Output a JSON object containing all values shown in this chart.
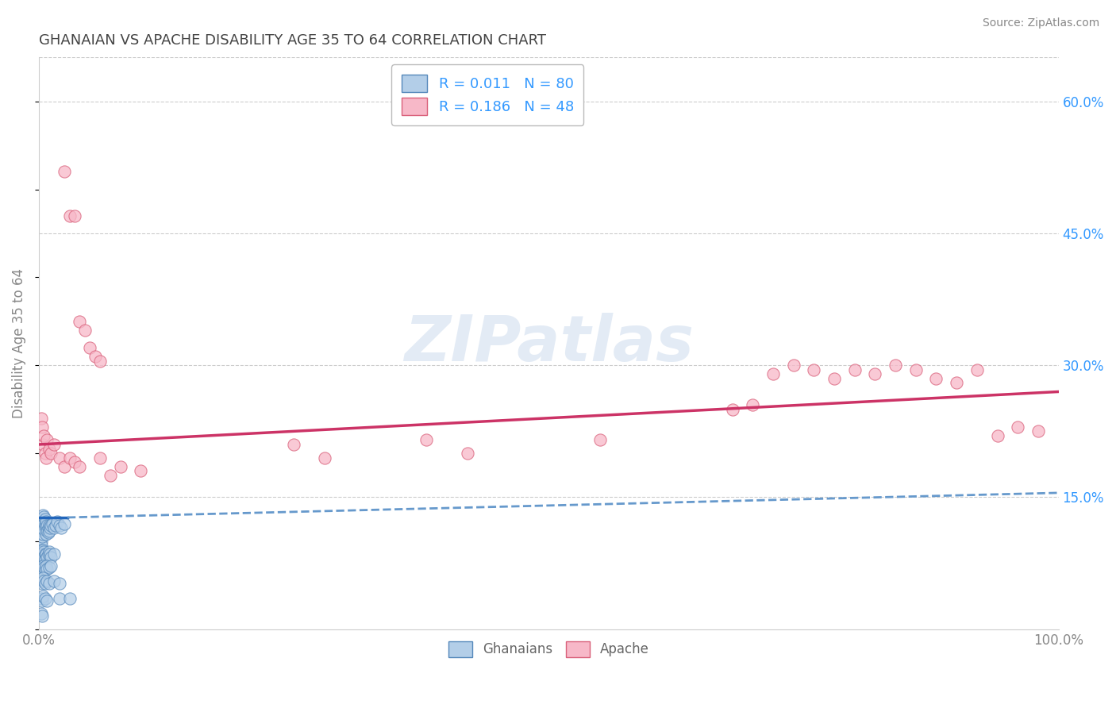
{
  "title": "GHANAIAN VS APACHE DISABILITY AGE 35 TO 64 CORRELATION CHART",
  "source": "Source: ZipAtlas.com",
  "ylabel": "Disability Age 35 to 64",
  "xlim": [
    0,
    1.0
  ],
  "ylim": [
    0,
    0.65
  ],
  "ytick_positions": [
    0.15,
    0.3,
    0.45,
    0.6
  ],
  "ytick_labels": [
    "15.0%",
    "30.0%",
    "45.0%",
    "60.0%"
  ],
  "ghanaian_color": "#b3cee8",
  "apache_color": "#f7b8c8",
  "ghanaian_edge": "#5588bb",
  "apache_edge": "#d9607a",
  "trend_ghanaian_solid_color": "#2266bb",
  "trend_ghanaian_dash_color": "#6699cc",
  "trend_apache_color": "#cc3366",
  "background_color": "#ffffff",
  "grid_color": "#cccccc",
  "title_color": "#444444",
  "tick_color_right": "#3399ff",
  "ghanaian_x": [
    0.002,
    0.002,
    0.002,
    0.002,
    0.002,
    0.003,
    0.003,
    0.003,
    0.003,
    0.004,
    0.004,
    0.004,
    0.004,
    0.005,
    0.005,
    0.005,
    0.006,
    0.006,
    0.007,
    0.007,
    0.007,
    0.008,
    0.008,
    0.009,
    0.009,
    0.01,
    0.01,
    0.011,
    0.012,
    0.013,
    0.015,
    0.016,
    0.018,
    0.02,
    0.022,
    0.025,
    0.002,
    0.002,
    0.002,
    0.003,
    0.003,
    0.004,
    0.004,
    0.005,
    0.005,
    0.006,
    0.006,
    0.007,
    0.008,
    0.009,
    0.01,
    0.011,
    0.012,
    0.015,
    0.002,
    0.003,
    0.004,
    0.005,
    0.006,
    0.007,
    0.008,
    0.01,
    0.012,
    0.002,
    0.003,
    0.004,
    0.005,
    0.006,
    0.008,
    0.01,
    0.015,
    0.02,
    0.002,
    0.003,
    0.004,
    0.006,
    0.008,
    0.02,
    0.03,
    0.002,
    0.003
  ],
  "ghanaian_y": [
    0.12,
    0.115,
    0.108,
    0.1,
    0.095,
    0.125,
    0.118,
    0.112,
    0.105,
    0.13,
    0.122,
    0.115,
    0.108,
    0.128,
    0.12,
    0.113,
    0.125,
    0.118,
    0.122,
    0.115,
    0.108,
    0.118,
    0.112,
    0.115,
    0.11,
    0.118,
    0.112,
    0.115,
    0.118,
    0.12,
    0.115,
    0.118,
    0.122,
    0.118,
    0.115,
    0.12,
    0.09,
    0.085,
    0.08,
    0.088,
    0.082,
    0.09,
    0.085,
    0.088,
    0.082,
    0.085,
    0.08,
    0.085,
    0.082,
    0.085,
    0.088,
    0.085,
    0.082,
    0.085,
    0.07,
    0.068,
    0.072,
    0.07,
    0.068,
    0.072,
    0.068,
    0.07,
    0.072,
    0.055,
    0.052,
    0.058,
    0.055,
    0.052,
    0.055,
    0.052,
    0.055,
    0.052,
    0.035,
    0.032,
    0.038,
    0.035,
    0.032,
    0.035,
    0.035,
    0.018,
    0.015
  ],
  "apache_x": [
    0.002,
    0.003,
    0.004,
    0.005,
    0.006,
    0.007,
    0.008,
    0.01,
    0.012,
    0.015,
    0.02,
    0.025,
    0.03,
    0.035,
    0.04,
    0.06,
    0.08,
    0.1,
    0.25,
    0.28,
    0.38,
    0.42,
    0.55,
    0.68,
    0.7,
    0.72,
    0.74,
    0.76,
    0.78,
    0.8,
    0.82,
    0.84,
    0.86,
    0.88,
    0.9,
    0.92,
    0.94,
    0.96,
    0.98,
    0.025,
    0.03,
    0.035,
    0.04,
    0.045,
    0.05,
    0.055,
    0.06,
    0.07
  ],
  "apache_y": [
    0.24,
    0.23,
    0.21,
    0.22,
    0.2,
    0.195,
    0.215,
    0.205,
    0.2,
    0.21,
    0.195,
    0.185,
    0.195,
    0.19,
    0.185,
    0.195,
    0.185,
    0.18,
    0.21,
    0.195,
    0.215,
    0.2,
    0.215,
    0.25,
    0.255,
    0.29,
    0.3,
    0.295,
    0.285,
    0.295,
    0.29,
    0.3,
    0.295,
    0.285,
    0.28,
    0.295,
    0.22,
    0.23,
    0.225,
    0.52,
    0.47,
    0.47,
    0.35,
    0.34,
    0.32,
    0.31,
    0.305,
    0.175
  ],
  "apache_trend_x0": 0.0,
  "apache_trend_y0": 0.21,
  "apache_trend_x1": 1.0,
  "apache_trend_y1": 0.27,
  "ghanaian_trend_solid_x0": 0.0,
  "ghanaian_trend_solid_y0": 0.127,
  "ghanaian_trend_solid_x1": 0.028,
  "ghanaian_trend_solid_y1": 0.127,
  "ghanaian_trend_dash_x0": 0.028,
  "ghanaian_trend_dash_y0": 0.127,
  "ghanaian_trend_dash_x1": 1.0,
  "ghanaian_trend_dash_y1": 0.155
}
